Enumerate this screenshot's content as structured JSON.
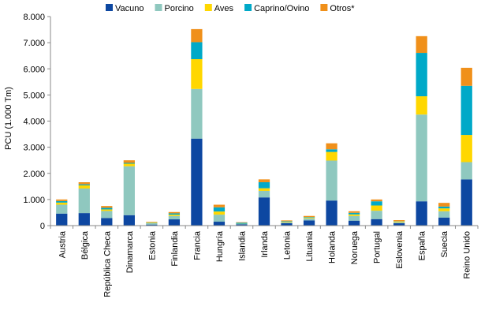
{
  "chart_data": {
    "type": "bar",
    "stacked": true,
    "title": "",
    "xlabel": "",
    "ylabel": "PCU (1.000 Tm)",
    "ylim": [
      0,
      8000
    ],
    "yticks": [
      "0",
      "1.000",
      "2.000",
      "3.000",
      "4.000",
      "5.000",
      "6.000",
      "7.000",
      "8.000"
    ],
    "grid": false,
    "legend_position": "top",
    "categories": [
      "Austria",
      "Bélgica",
      "República Checa",
      "Dinamarca",
      "Estonia",
      "Finlandia",
      "Francia",
      "Hungría",
      "Islandia",
      "Irlanda",
      "Letonia",
      "Lituania",
      "Holanda",
      "Noruega",
      "Portugal",
      "Eslovenia",
      "España",
      "Suecia",
      "Reino Unido"
    ],
    "series": [
      {
        "name": "Vacuno",
        "color": "#0D47A1",
        "values": [
          460,
          480,
          290,
          400,
          40,
          240,
          3330,
          150,
          50,
          1080,
          90,
          200,
          960,
          190,
          250,
          90,
          930,
          310,
          1770
        ]
      },
      {
        "name": "Porcino",
        "color": "#8FC8BF",
        "values": [
          340,
          940,
          270,
          1870,
          50,
          130,
          1900,
          270,
          10,
          250,
          40,
          80,
          1530,
          180,
          320,
          40,
          3320,
          240,
          660
        ]
      },
      {
        "name": "Aves",
        "color": "#FFD700",
        "values": [
          80,
          120,
          60,
          100,
          20,
          50,
          1140,
          120,
          10,
          100,
          20,
          30,
          330,
          60,
          200,
          30,
          700,
          110,
          1040
        ]
      },
      {
        "name": "Caprino/Ovino",
        "color": "#00A9C8",
        "values": [
          60,
          40,
          60,
          30,
          10,
          50,
          650,
          160,
          40,
          230,
          20,
          20,
          100,
          60,
          160,
          10,
          1660,
          70,
          1880
        ]
      },
      {
        "name": "Otros*",
        "color": "#F0901A",
        "values": [
          60,
          80,
          70,
          100,
          20,
          50,
          500,
          100,
          20,
          110,
          30,
          40,
          230,
          60,
          70,
          40,
          640,
          140,
          690
        ]
      }
    ]
  }
}
